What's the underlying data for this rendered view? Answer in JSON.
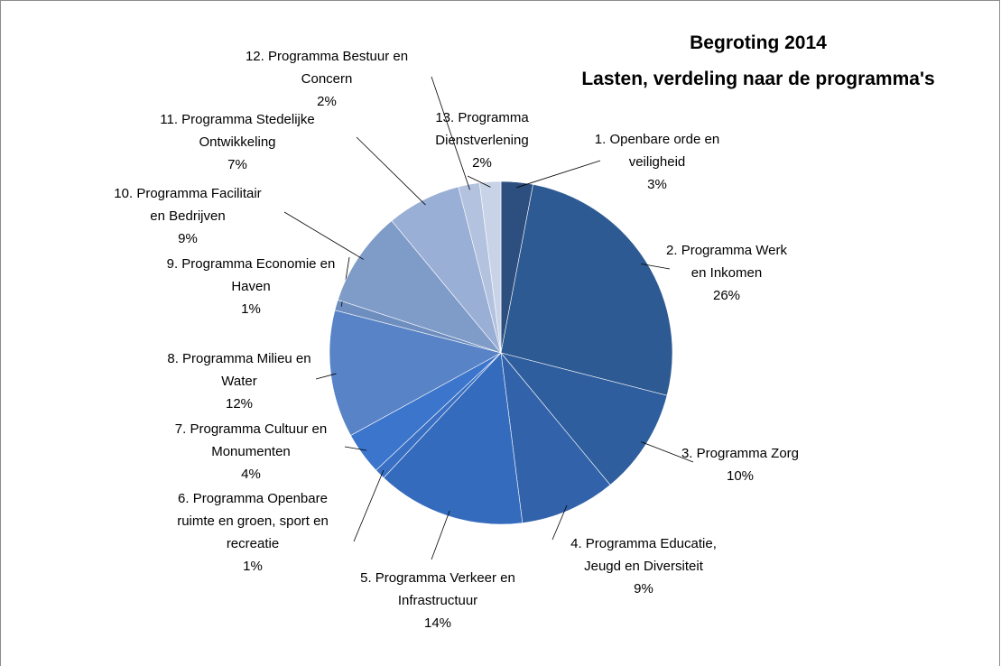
{
  "chart_data": {
    "type": "pie",
    "title": "Begroting 2014",
    "subtitle": "Lasten, verdeling naar de programma's",
    "categories": [
      "1. Openbare orde en veiligheid",
      "2. Programma Werk en Inkomen",
      "3. Programma Zorg",
      "4. Programma Educatie, Jeugd en Diversiteit",
      "5. Programma Verkeer en Infrastructuur",
      "6. Programma Openbare ruimte en groen, sport en recreatie",
      "7. Programma Cultuur en Monumenten",
      "8. Programma Milieu en Water",
      "9. Programma Economie en Haven",
      "10. Programma Facilitair en Bedrijven",
      "11. Programma Stedelijke Ontwikkeling",
      "12. Programma Bestuur en Concern",
      "13. Programma Dienstverlening"
    ],
    "values": [
      3,
      26,
      10,
      9,
      14,
      1,
      4,
      12,
      1,
      9,
      7,
      2,
      2
    ],
    "value_labels": [
      "3%",
      "26%",
      "10%",
      "9%",
      "14%",
      "1%",
      "4%",
      "12%",
      "1%",
      "9%",
      "7%",
      "2%",
      "2%"
    ],
    "colors": [
      "#2c4f7f",
      "#2e5a93",
      "#2f5e9e",
      "#3263aa",
      "#356bbd",
      "#3a70c4",
      "#3c75cc",
      "#5883c6",
      "#6e8ec0",
      "#7f9cc9",
      "#9aafd6",
      "#b3c2de",
      "#c9d3e8"
    ]
  }
}
